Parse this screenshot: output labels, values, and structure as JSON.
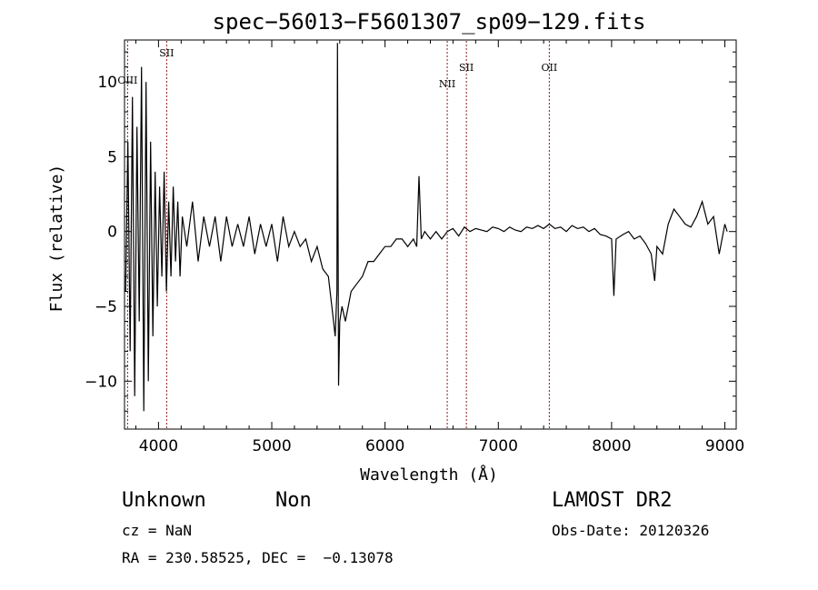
{
  "chart_data": {
    "type": "line",
    "title": "spec−56013−F5601307_sp09−129.fits",
    "xlabel": "Wavelength (Å)",
    "ylabel": "Flux (relative)",
    "xlim": [
      3700,
      9100
    ],
    "ylim": [
      -13.2,
      12.8
    ],
    "xticks": [
      4000,
      5000,
      6000,
      7000,
      8000,
      9000
    ],
    "yticks": [
      -10,
      -5,
      0,
      5,
      10
    ],
    "ytick_labels": [
      "−10",
      "−5",
      "0",
      "5",
      "10"
    ],
    "grid": false,
    "line_color": "#000000",
    "marker_color": "#8b1a1a",
    "lines": [
      {
        "label": "OIII",
        "wavelength": 3727
      },
      {
        "label": "SII",
        "wavelength": 4072
      },
      {
        "label": "NII",
        "wavelength": 6549
      },
      {
        "label": "SII",
        "wavelength": 6718
      },
      {
        "label": "OII",
        "wavelength": 7450
      }
    ],
    "series": [
      {
        "x": [
          3710,
          3730,
          3750,
          3770,
          3790,
          3810,
          3830,
          3850,
          3870,
          3890,
          3910,
          3930,
          3950,
          3970,
          3990,
          4010,
          4030,
          4050,
          4070,
          4090,
          4110,
          4130,
          4150,
          4170,
          4190,
          4210,
          4250,
          4300,
          4350,
          4400,
          4450,
          4500,
          4550,
          4600,
          4650,
          4700,
          4750,
          4800,
          4850,
          4900,
          4950,
          5000,
          5050,
          5100,
          5150,
          5200,
          5250,
          5300,
          5350,
          5400,
          5450,
          5500,
          5530,
          5560,
          5575,
          5580,
          5590,
          5600,
          5620,
          5650,
          5700,
          5750,
          5800,
          5850,
          5900,
          5950,
          6000,
          6050,
          6100,
          6150,
          6200,
          6250,
          6280,
          6300,
          6320,
          6350,
          6400,
          6450,
          6500,
          6550,
          6600,
          6650,
          6700,
          6750,
          6800,
          6850,
          6900,
          6950,
          7000,
          7050,
          7100,
          7150,
          7200,
          7250,
          7300,
          7350,
          7400,
          7450,
          7500,
          7550,
          7600,
          7650,
          7700,
          7750,
          7800,
          7850,
          7900,
          7950,
          8000,
          8020,
          8040,
          8100,
          8150,
          8200,
          8250,
          8300,
          8350,
          8380,
          8400,
          8450,
          8500,
          8550,
          8600,
          8650,
          8700,
          8750,
          8800,
          8850,
          8900,
          8950,
          9000,
          9020
        ],
        "y": [
          -4,
          6,
          -8,
          9,
          -11,
          7,
          -6,
          11,
          -12,
          10,
          -10,
          6,
          -7,
          4,
          -5,
          3,
          -3,
          4,
          -4,
          2,
          -3,
          3,
          -2,
          2,
          -3,
          1,
          -1,
          2,
          -2,
          1,
          -1,
          1,
          -2,
          1,
          -1,
          0.5,
          -1,
          1,
          -1.5,
          0.5,
          -1,
          0.5,
          -2,
          1,
          -1,
          0,
          -1,
          -0.5,
          -2,
          -1,
          -2.5,
          -3,
          -5,
          -7,
          -4,
          12.6,
          -10.3,
          -6,
          -5,
          -6,
          -4,
          -3.5,
          -3,
          -2,
          -2,
          -1.5,
          -1,
          -1,
          -0.5,
          -0.5,
          -1,
          -0.5,
          -1,
          3.7,
          -0.5,
          0,
          -0.5,
          0,
          -0.5,
          0,
          0.2,
          -0.3,
          0.3,
          0,
          0.2,
          0.1,
          0,
          0.3,
          0.2,
          0,
          0.3,
          0.1,
          0,
          0.3,
          0.2,
          0.4,
          0.2,
          0.5,
          0.2,
          0.3,
          0,
          0.4,
          0.2,
          0.3,
          0,
          0.2,
          -0.2,
          -0.3,
          -0.5,
          -4.3,
          -0.5,
          -0.2,
          0,
          -0.5,
          -0.3,
          -0.8,
          -1.5,
          -3.3,
          -1,
          -1.5,
          0.5,
          1.5,
          1,
          0.5,
          0.3,
          1,
          2,
          0.5,
          1,
          -1.5,
          0.5,
          0
        ]
      }
    ]
  },
  "info": {
    "object_class": "Unknown",
    "object_subclass": "Non",
    "survey": "LAMOST DR2",
    "redshift": "cz = NaN",
    "obs_date": "Obs-Date: 20120326",
    "coords": "RA = 230.58525, DEC =  −0.13078"
  }
}
